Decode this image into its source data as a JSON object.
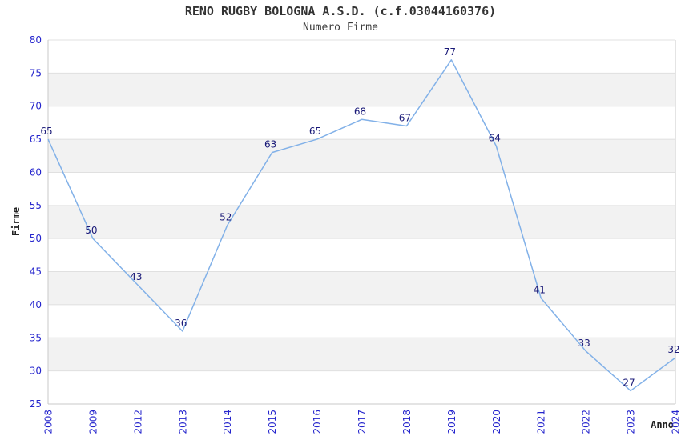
{
  "chart_data": {
    "type": "line",
    "title": "RENO RUGBY BOLOGNA A.S.D. (c.f.03044160376)",
    "subtitle": "Numero Firme",
    "xlabel": "Anno",
    "ylabel": "Firme",
    "categories": [
      "2008",
      "2009",
      "2012",
      "2013",
      "2014",
      "2015",
      "2016",
      "2017",
      "2018",
      "2019",
      "2020",
      "2021",
      "2022",
      "2023",
      "2024"
    ],
    "values": [
      65,
      50,
      43,
      36,
      52,
      63,
      65,
      68,
      67,
      77,
      64,
      41,
      33,
      27,
      32
    ],
    "ylim": [
      25,
      80
    ],
    "ytick_step": 5,
    "yticks": [
      25,
      30,
      35,
      40,
      45,
      50,
      55,
      60,
      65,
      70,
      75,
      80
    ],
    "grid": true,
    "legend_position": "none",
    "band_pattern": "alternating-horizontal",
    "x_tick_rotation_deg": 90,
    "colors": {
      "line": "#82b1e8",
      "tick_label": "#2525cd",
      "point_label": "#1a1a78",
      "band_gray": "#f2f2f2",
      "gridline": "#e0e0e0",
      "axis_border": "#c9c9c9",
      "title_text": "#333333",
      "axis_title_text": "#222222",
      "background": "#ffffff"
    }
  }
}
